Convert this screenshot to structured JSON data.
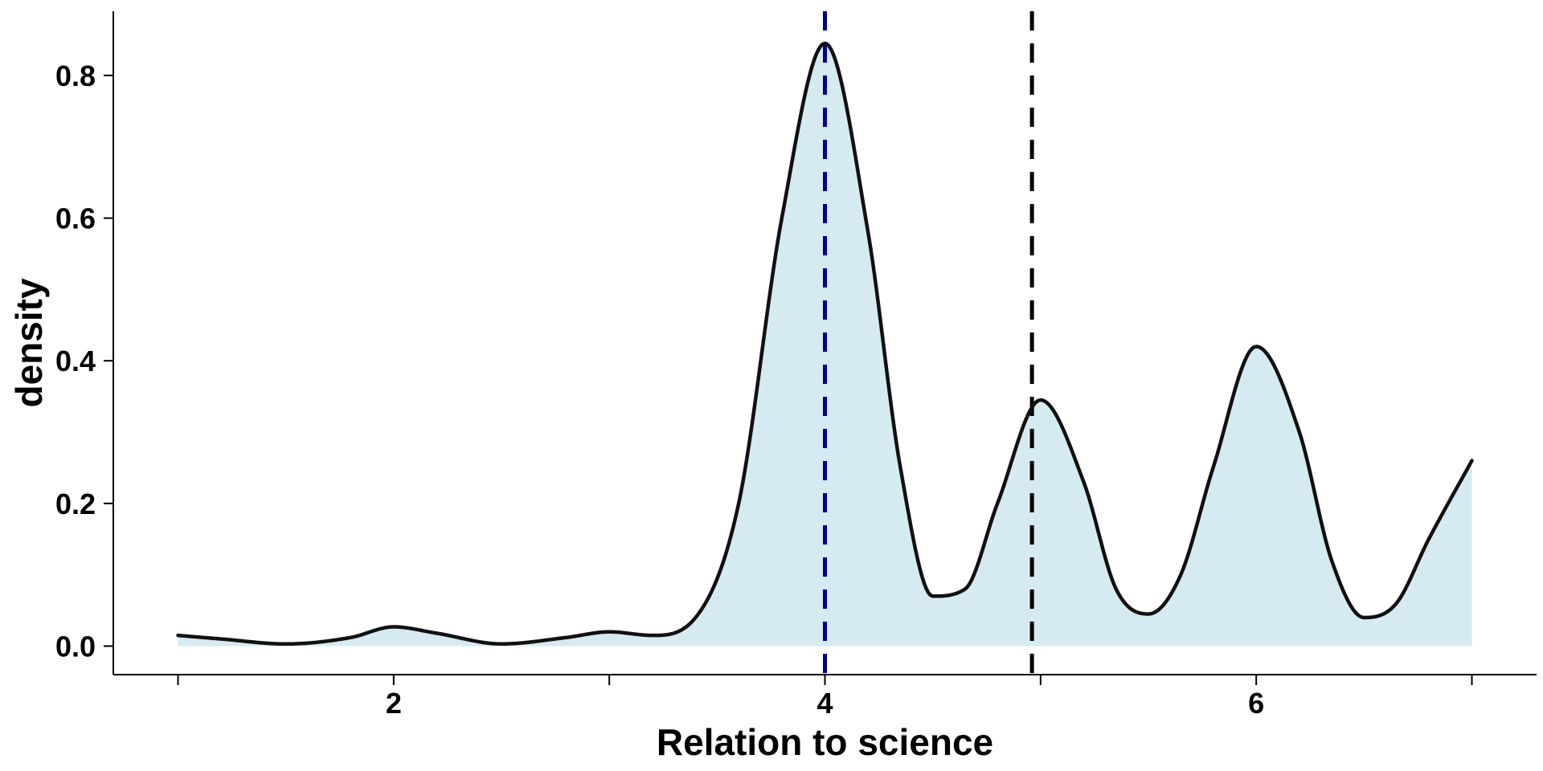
{
  "chart_data": {
    "type": "area",
    "xlabel": "Relation to science",
    "ylabel": "density",
    "xlim": [
      0.7,
      7.3
    ],
    "ylim": [
      -0.04,
      0.89
    ],
    "x_ticks": [
      1,
      2,
      3,
      4,
      5,
      6,
      7
    ],
    "x_tick_labels": [
      "",
      "2",
      "",
      "4",
      "",
      "6",
      ""
    ],
    "y_ticks": [
      0.0,
      0.2,
      0.4,
      0.6,
      0.8
    ],
    "y_tick_labels": [
      "0.0",
      "0.2",
      "0.4",
      "0.6",
      "0.8"
    ],
    "grid": false,
    "density_curve": {
      "x": [
        1.0,
        1.2,
        1.5,
        1.8,
        2.0,
        2.2,
        2.5,
        2.8,
        3.0,
        3.2,
        3.4,
        3.6,
        3.8,
        4.0,
        4.2,
        4.35,
        4.5,
        4.65,
        4.8,
        5.0,
        5.2,
        5.35,
        5.5,
        5.65,
        5.8,
        6.0,
        6.2,
        6.35,
        6.5,
        6.65,
        6.8,
        7.0
      ],
      "y": [
        0.015,
        0.01,
        0.003,
        0.012,
        0.027,
        0.018,
        0.003,
        0.012,
        0.02,
        0.015,
        0.04,
        0.2,
        0.6,
        0.845,
        0.58,
        0.25,
        0.07,
        0.08,
        0.2,
        0.345,
        0.23,
        0.08,
        0.045,
        0.1,
        0.25,
        0.42,
        0.3,
        0.12,
        0.04,
        0.06,
        0.15,
        0.26
      ]
    },
    "reference_lines": [
      {
        "x": 4.0,
        "color": "#00008b",
        "style": "dashed"
      },
      {
        "x": 4.96,
        "color": "#000000",
        "style": "dashed"
      }
    ],
    "colors": {
      "fill": "#d6eaf2",
      "line": "#111111"
    }
  }
}
